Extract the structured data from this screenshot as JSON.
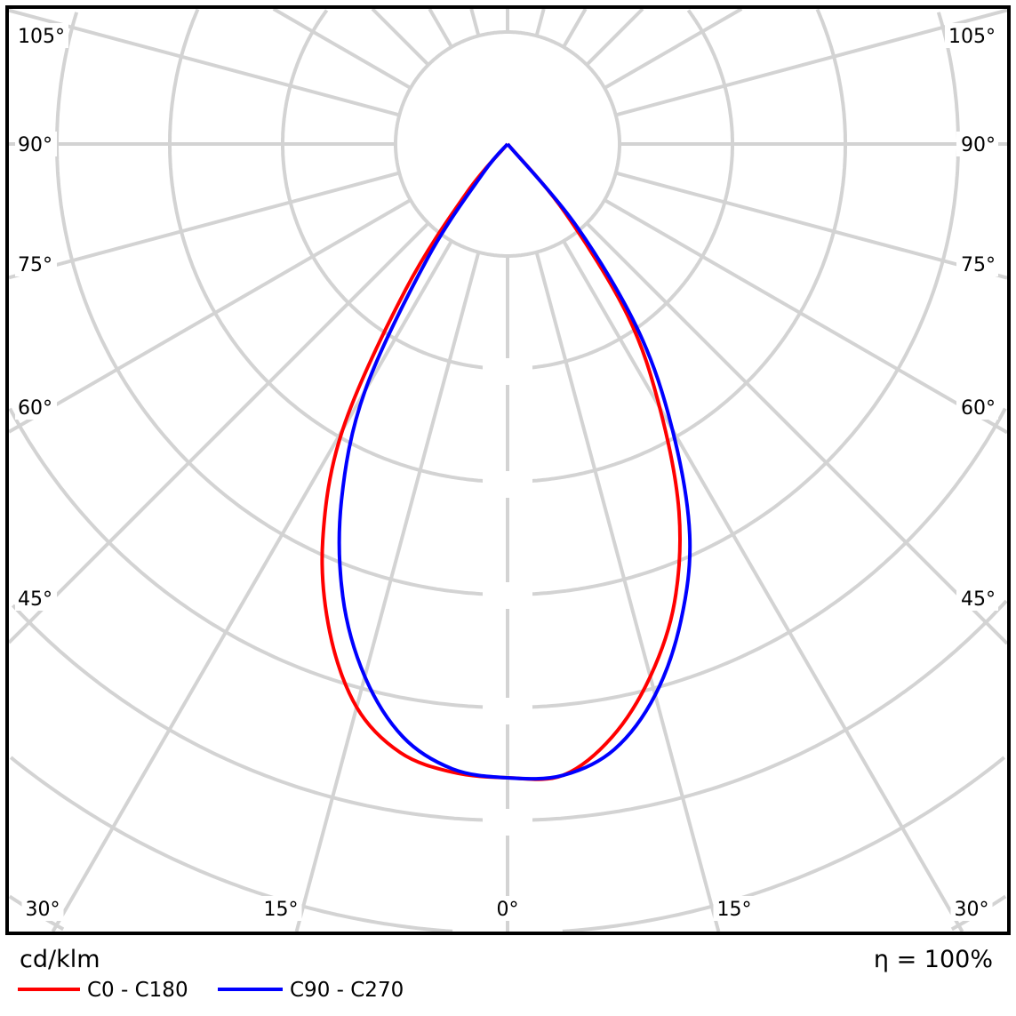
{
  "chart_data": {
    "type": "polar",
    "unit_label": "cd/klm",
    "efficiency_label": "η = 100%",
    "angle_ticks_left": [
      "105°",
      "90°",
      "75°",
      "60°",
      "45°",
      "30°"
    ],
    "angle_ticks_right": [
      "105°",
      "90°",
      "75°",
      "60°",
      "45°",
      "30°"
    ],
    "angle_ticks_bottom": [
      "30°",
      "15°",
      "0°",
      "15°",
      "30°"
    ],
    "grid": true,
    "angle_step_deg": 15,
    "radial_value_note": "relative intensity (1 = value at 0°)",
    "legend_position": "bottom-left",
    "series": [
      {
        "name": "C0 - C180",
        "color": "#ff0000",
        "angles_deg": [
          -45,
          -40,
          -35,
          -30,
          -25,
          -20,
          -15,
          -10,
          -5,
          0,
          5,
          10,
          15,
          20,
          25,
          30,
          35,
          40,
          45
        ],
        "values": [
          0,
          0.1,
          0.28,
          0.52,
          0.69,
          0.82,
          0.92,
          0.975,
          0.995,
          1.0,
          1.0,
          0.95,
          0.87,
          0.77,
          0.64,
          0.48,
          0.33,
          0.14,
          0
        ]
      },
      {
        "name": "C90 - C270",
        "color": "#0000ff",
        "angles_deg": [
          -45,
          -40,
          -35,
          -30,
          -25,
          -20,
          -15,
          -10,
          -5,
          0,
          5,
          10,
          15,
          20,
          25,
          30,
          35,
          40,
          45
        ],
        "values": [
          0,
          0.06,
          0.22,
          0.45,
          0.62,
          0.76,
          0.87,
          0.95,
          0.99,
          1.0,
          1.0,
          0.97,
          0.9,
          0.8,
          0.68,
          0.52,
          0.36,
          0.17,
          0
        ]
      }
    ]
  }
}
